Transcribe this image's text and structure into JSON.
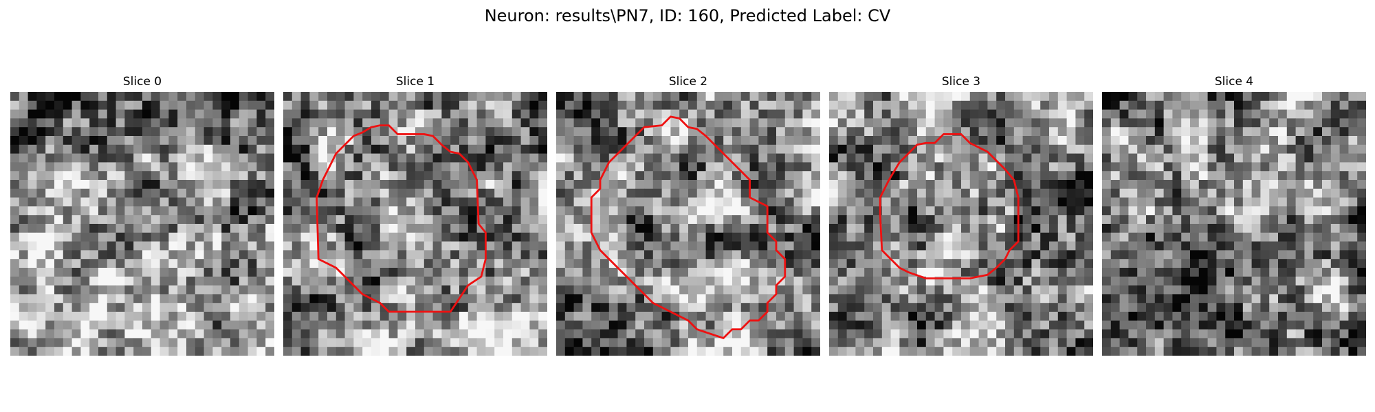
{
  "figure": {
    "title": "Neuron: results\\PN7, ID: 160, Predicted Label: CV",
    "contour_color": "#ee1111"
  },
  "slices": [
    {
      "title": "Slice 0",
      "has_contour": false
    },
    {
      "title": "Slice 1",
      "has_contour": true
    },
    {
      "title": "Slice 2",
      "has_contour": true
    },
    {
      "title": "Slice 3",
      "has_contour": true
    },
    {
      "title": "Slice 4",
      "has_contour": false
    }
  ]
}
